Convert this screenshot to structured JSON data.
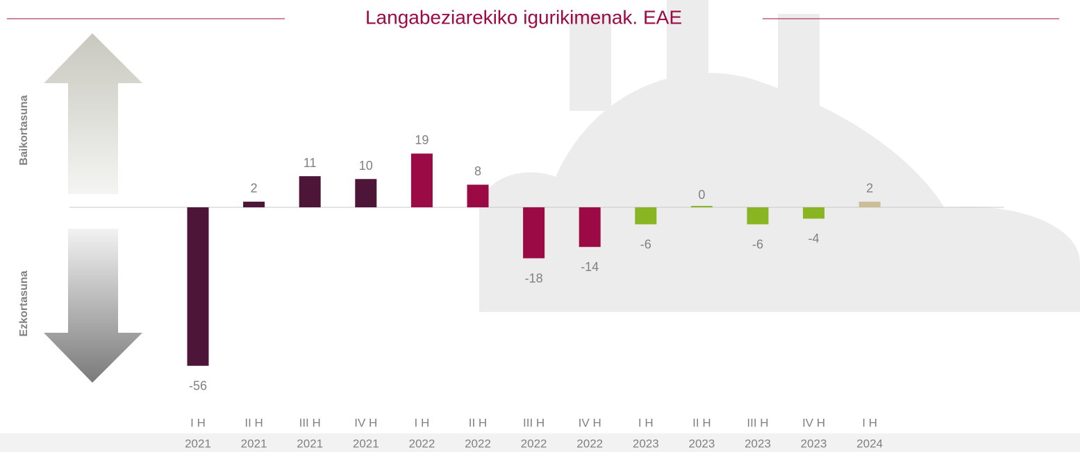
{
  "chart_data": {
    "type": "bar",
    "title": "Langabeziarekiko igurikimenak. EAE",
    "positive_label": "Baikortasuna",
    "negative_label": "Ezkortasuna",
    "categories": [
      [
        "I H",
        "2021"
      ],
      [
        "II H",
        "2021"
      ],
      [
        "III H",
        "2021"
      ],
      [
        "IV H",
        "2021"
      ],
      [
        "I H",
        "2022"
      ],
      [
        "II H",
        "2022"
      ],
      [
        "III H",
        "2022"
      ],
      [
        "IV H",
        "2022"
      ],
      [
        "I H",
        "2023"
      ],
      [
        "II H",
        "2023"
      ],
      [
        "III H",
        "2023"
      ],
      [
        "IV H",
        "2023"
      ],
      [
        "I H",
        "2024"
      ]
    ],
    "values": [
      -56,
      2,
      11,
      10,
      19,
      8,
      -18,
      -14,
      -6,
      0,
      -6,
      -4,
      2
    ],
    "colors": [
      "#4d1538",
      "#4d1538",
      "#4d1538",
      "#4d1538",
      "#9c0a45",
      "#9c0a45",
      "#9c0a45",
      "#9c0a45",
      "#8ab523",
      "#8ab523",
      "#8ab523",
      "#8ab523",
      "#cbbd98"
    ],
    "ylim": [
      -60,
      25
    ]
  }
}
